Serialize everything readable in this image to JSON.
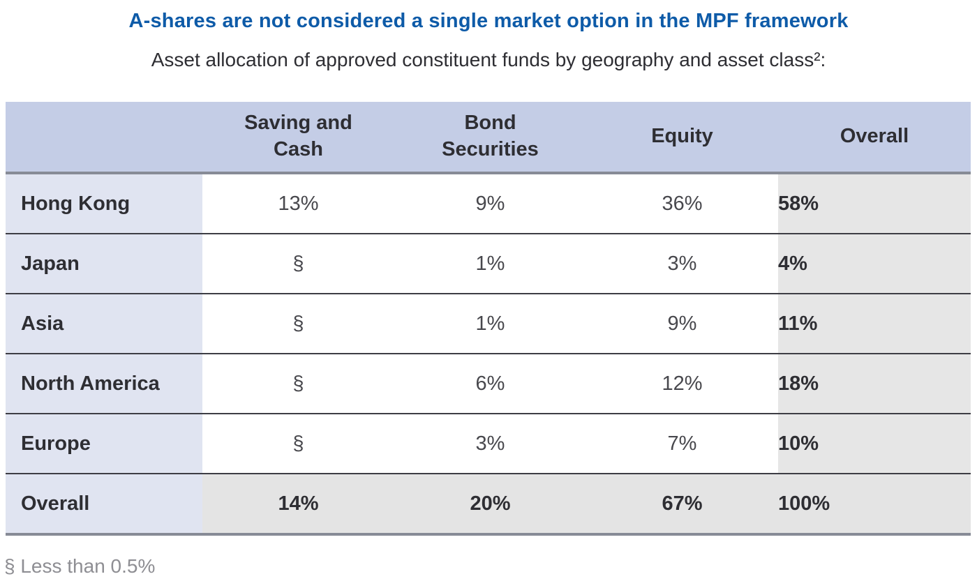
{
  "title": "A-shares are not considered a single market option in the MPF framework",
  "subtitle": "Asset allocation of approved constituent funds by geography and asset class²:",
  "table": {
    "columns": [
      {
        "lines": [
          "Saving and",
          "Cash"
        ]
      },
      {
        "lines": [
          "Bond",
          "Securities"
        ]
      },
      {
        "lines": [
          "Equity"
        ]
      },
      {
        "lines": [
          "Overall"
        ]
      }
    ],
    "rows": [
      {
        "label": "Hong Kong",
        "values": [
          "13%",
          "9%",
          "36%",
          "58%"
        ]
      },
      {
        "label": "Japan",
        "values": [
          "§",
          "1%",
          "3%",
          "4%"
        ]
      },
      {
        "label": "Asia",
        "values": [
          "§",
          "1%",
          "9%",
          "11%"
        ]
      },
      {
        "label": "North America",
        "values": [
          "§",
          "6%",
          "12%",
          "18%"
        ]
      },
      {
        "label": "Europe",
        "values": [
          "§",
          "3%",
          "7%",
          "10%"
        ]
      },
      {
        "label": "Overall",
        "values": [
          "14%",
          "20%",
          "67%",
          "100%"
        ]
      }
    ]
  },
  "footnote": "§ Less than 0.5%",
  "chart_data": {
    "type": "table",
    "title": "Asset allocation of approved constituent funds by geography and asset class",
    "columns": [
      "Saving and Cash",
      "Bond Securities",
      "Equity",
      "Overall"
    ],
    "rows": [
      {
        "label": "Hong Kong",
        "values": [
          "13%",
          "9%",
          "36%",
          "58%"
        ]
      },
      {
        "label": "Japan",
        "values": [
          "§",
          "1%",
          "3%",
          "4%"
        ]
      },
      {
        "label": "Asia",
        "values": [
          "§",
          "1%",
          "9%",
          "11%"
        ]
      },
      {
        "label": "North America",
        "values": [
          "§",
          "6%",
          "12%",
          "18%"
        ]
      },
      {
        "label": "Europe",
        "values": [
          "§",
          "3%",
          "7%",
          "10%"
        ]
      },
      {
        "label": "Overall",
        "values": [
          "14%",
          "20%",
          "67%",
          "100%"
        ]
      }
    ],
    "footnote": "§ Less than 0.5%"
  },
  "colors": {
    "title_blue": "#0e5ba8",
    "text_dark": "#2e2e33",
    "value_gray": "#48484d",
    "header_bg": "#c4cde6",
    "rowlabel_bg": "#e0e4f1",
    "overall_col_bg": "#e6e6e6",
    "overall_row_bg": "#e4e4e4",
    "divider_dark": "#3d3d44",
    "divider_gray": "#878b96",
    "footnote_gray": "#8e8e93"
  }
}
